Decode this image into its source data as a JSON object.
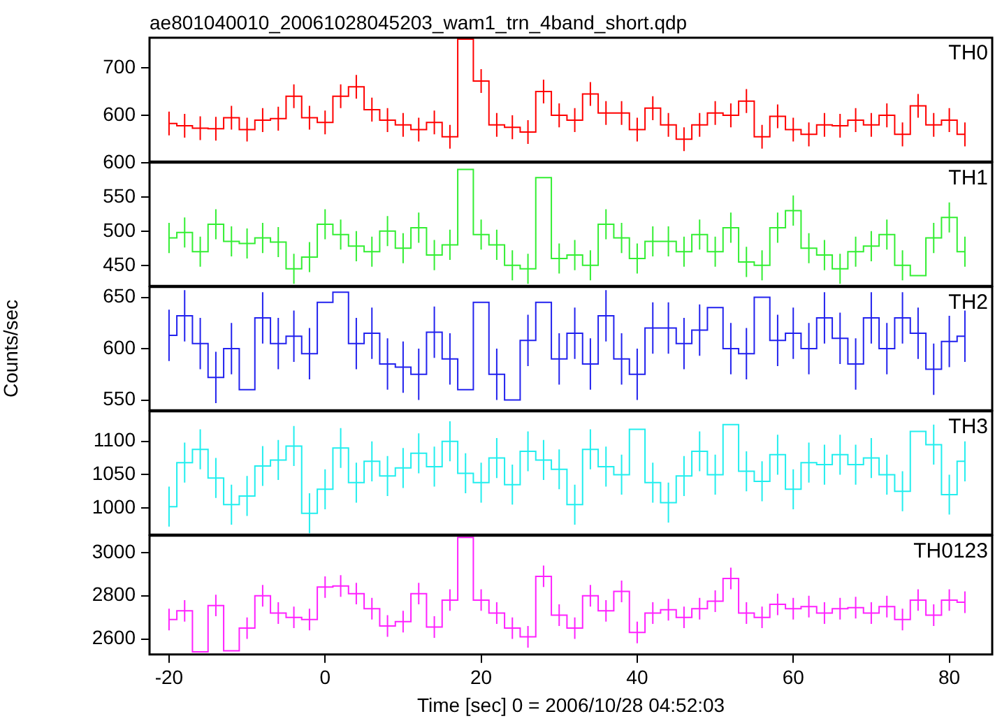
{
  "chart_data": [
    {
      "type": "step",
      "title": "ae801040010_20061028045203_wam1_trn_4band_short.qdp",
      "tick_labels": "y",
      "xlim": [
        -22.5,
        85.5
      ],
      "xticks": [
        -20,
        0,
        20,
        40,
        60,
        80
      ],
      "ylim": [
        503,
        763
      ],
      "yticks": [
        600,
        700
      ],
      "x": [
        -20,
        -18,
        -16,
        -14,
        -12,
        -10,
        -8,
        -6,
        -4,
        -2,
        0,
        2,
        4,
        6,
        8,
        10,
        12,
        14,
        16,
        18,
        20,
        22,
        24,
        26,
        28,
        30,
        32,
        34,
        36,
        38,
        40,
        42,
        44,
        46,
        48,
        50,
        52,
        54,
        56,
        58,
        60,
        62,
        64,
        66,
        68,
        70,
        72,
        74,
        76,
        78,
        80,
        82
      ],
      "series": [
        {
          "name": "TH0",
          "color": "#ff0000",
          "values": [
            583,
            578,
            573,
            572,
            595,
            570,
            590,
            593,
            640,
            595,
            585,
            640,
            660,
            612,
            590,
            580,
            570,
            585,
            555,
            760,
            672,
            580,
            575,
            565,
            650,
            600,
            590,
            645,
            605,
            605,
            570,
            615,
            580,
            550,
            580,
            605,
            600,
            630,
            555,
            598,
            570,
            560,
            580,
            578,
            590,
            580,
            600,
            560,
            620,
            580,
            590,
            560
          ],
          "errors": [
            25,
            25,
            25,
            25,
            25,
            25,
            25,
            25,
            25,
            25,
            25,
            25,
            25,
            25,
            25,
            25,
            25,
            25,
            25,
            null,
            25,
            25,
            25,
            25,
            25,
            25,
            25,
            25,
            25,
            25,
            25,
            25,
            25,
            25,
            25,
            25,
            25,
            25,
            25,
            25,
            25,
            25,
            25,
            25,
            25,
            25,
            25,
            25,
            25,
            25,
            25,
            25
          ]
        }
      ]
    },
    {
      "type": "step",
      "tick_labels": "y",
      "xlim": [
        -22.5,
        85.5
      ],
      "xticks": [
        -20,
        0,
        20,
        40,
        60,
        80
      ],
      "ylim": [
        420,
        600
      ],
      "yticks": [
        450,
        500,
        550,
        600
      ],
      "x": [
        -20,
        -18,
        -16,
        -14,
        -12,
        -10,
        -8,
        -6,
        -4,
        -2,
        0,
        2,
        4,
        6,
        8,
        10,
        12,
        14,
        16,
        18,
        20,
        22,
        24,
        26,
        28,
        30,
        32,
        34,
        36,
        38,
        40,
        42,
        44,
        46,
        48,
        50,
        52,
        54,
        56,
        58,
        60,
        62,
        64,
        66,
        68,
        70,
        72,
        74,
        76,
        78,
        80,
        82
      ],
      "series": [
        {
          "name": "TH1",
          "color": "#33ee33",
          "values": [
            490,
            498,
            470,
            510,
            485,
            482,
            490,
            484,
            445,
            462,
            510,
            495,
            478,
            470,
            500,
            475,
            505,
            465,
            480,
            590,
            495,
            480,
            450,
            445,
            578,
            460,
            465,
            450,
            510,
            490,
            460,
            485,
            485,
            470,
            495,
            470,
            505,
            455,
            450,
            505,
            530,
            475,
            465,
            445,
            470,
            478,
            495,
            450,
            435,
            490,
            520,
            470
          ],
          "errors": [
            22,
            22,
            22,
            22,
            22,
            22,
            22,
            22,
            22,
            22,
            22,
            22,
            22,
            22,
            22,
            22,
            22,
            22,
            22,
            null,
            22,
            22,
            22,
            22,
            null,
            22,
            22,
            22,
            22,
            22,
            22,
            22,
            22,
            22,
            22,
            22,
            22,
            22,
            22,
            22,
            22,
            22,
            22,
            22,
            22,
            22,
            22,
            22,
            null,
            22,
            22,
            22
          ]
        }
      ]
    },
    {
      "type": "step",
      "tick_labels": "y",
      "ylabel": "Counts/sec",
      "xlim": [
        -22.5,
        85.5
      ],
      "xticks": [
        -20,
        0,
        20,
        40,
        60,
        80
      ],
      "ylim": [
        540,
        660
      ],
      "yticks": [
        550,
        600,
        650
      ],
      "x": [
        -20,
        -18,
        -16,
        -14,
        -12,
        -10,
        -8,
        -6,
        -4,
        -2,
        0,
        2,
        4,
        6,
        8,
        10,
        12,
        14,
        16,
        18,
        20,
        22,
        24,
        26,
        28,
        30,
        32,
        34,
        36,
        38,
        40,
        42,
        44,
        46,
        48,
        50,
        52,
        54,
        56,
        58,
        60,
        62,
        64,
        66,
        68,
        70,
        72,
        74,
        76,
        78,
        80,
        82
      ],
      "series": [
        {
          "name": "TH2",
          "color": "#2222ee",
          "values": [
            613,
            632,
            605,
            572,
            600,
            560,
            630,
            605,
            612,
            595,
            645,
            655,
            605,
            615,
            585,
            582,
            575,
            616,
            590,
            560,
            645,
            575,
            550,
            608,
            645,
            590,
            615,
            585,
            632,
            590,
            575,
            620,
            620,
            605,
            618,
            640,
            600,
            595,
            650,
            608,
            615,
            600,
            630,
            610,
            585,
            630,
            600,
            630,
            615,
            580,
            607,
            612
          ],
          "errors": [
            25,
            25,
            25,
            25,
            25,
            null,
            25,
            25,
            25,
            25,
            null,
            null,
            25,
            25,
            25,
            25,
            25,
            25,
            25,
            null,
            null,
            25,
            null,
            25,
            null,
            25,
            25,
            25,
            25,
            25,
            25,
            25,
            25,
            25,
            25,
            null,
            25,
            25,
            null,
            25,
            25,
            25,
            25,
            25,
            25,
            25,
            25,
            25,
            25,
            25,
            25,
            25
          ]
        }
      ]
    },
    {
      "type": "step",
      "tick_labels": "y",
      "xlim": [
        -22.5,
        85.5
      ],
      "xticks": [
        -20,
        0,
        20,
        40,
        60,
        80
      ],
      "ylim": [
        960,
        1145
      ],
      "yticks": [
        1000,
        1050,
        1100
      ],
      "x": [
        -20,
        -18,
        -16,
        -14,
        -12,
        -10,
        -8,
        -6,
        -4,
        -2,
        0,
        2,
        4,
        6,
        8,
        10,
        12,
        14,
        16,
        18,
        20,
        22,
        24,
        26,
        28,
        30,
        32,
        34,
        36,
        38,
        40,
        42,
        44,
        46,
        48,
        50,
        52,
        54,
        56,
        58,
        60,
        62,
        64,
        66,
        68,
        70,
        72,
        74,
        76,
        78,
        80,
        82
      ],
      "series": [
        {
          "name": "TH3",
          "color": "#22eeee",
          "values": [
            1002,
            1068,
            1088,
            1045,
            1005,
            1018,
            1063,
            1072,
            1093,
            992,
            1028,
            1090,
            1038,
            1070,
            1048,
            1060,
            1082,
            1062,
            1100,
            1052,
            1038,
            1075,
            1035,
            1085,
            1072,
            1058,
            1005,
            1088,
            1062,
            1050,
            1118,
            1038,
            1008,
            1048,
            1085,
            1050,
            1125,
            1055,
            1040,
            1080,
            1028,
            1068,
            1065,
            1080,
            1065,
            1075,
            1050,
            1025,
            1115,
            1095,
            1020,
            1070
          ],
          "errors": [
            30,
            30,
            30,
            30,
            30,
            30,
            30,
            30,
            30,
            30,
            30,
            30,
            30,
            30,
            30,
            30,
            30,
            30,
            30,
            30,
            30,
            30,
            30,
            30,
            30,
            30,
            30,
            30,
            30,
            30,
            null,
            30,
            30,
            30,
            30,
            30,
            null,
            30,
            30,
            30,
            30,
            30,
            30,
            30,
            30,
            30,
            30,
            30,
            null,
            30,
            30,
            30
          ]
        }
      ]
    },
    {
      "type": "step",
      "xlabel": "Time [sec] 0 = 2006/10/28 04:52:03",
      "xlim": [
        -22.5,
        85.5
      ],
      "xticks": [
        -20,
        0,
        20,
        40,
        60,
        80
      ],
      "ylim": [
        2528,
        3078
      ],
      "yticks": [
        2600,
        2800,
        3000
      ],
      "x": [
        -20,
        -18,
        -16,
        -14,
        -12,
        -10,
        -8,
        -6,
        -4,
        -2,
        0,
        2,
        4,
        6,
        8,
        10,
        12,
        14,
        16,
        18,
        20,
        22,
        24,
        26,
        28,
        30,
        32,
        34,
        36,
        38,
        40,
        42,
        44,
        46,
        48,
        50,
        52,
        54,
        56,
        58,
        60,
        62,
        64,
        66,
        68,
        70,
        72,
        74,
        76,
        78,
        80,
        82
      ],
      "series": [
        {
          "name": "TH0123",
          "color": "#ff22ff",
          "values": [
            2690,
            2730,
            2540,
            2755,
            2545,
            2650,
            2800,
            2720,
            2700,
            2690,
            2840,
            2845,
            2810,
            2740,
            2660,
            2680,
            2810,
            2655,
            2780,
            3070,
            2780,
            2720,
            2650,
            2610,
            2890,
            2710,
            2650,
            2800,
            2730,
            2820,
            2630,
            2720,
            2735,
            2700,
            2740,
            2775,
            2880,
            2720,
            2700,
            2760,
            2740,
            2750,
            2720,
            2740,
            2745,
            2720,
            2750,
            2690,
            2780,
            2710,
            2780,
            2770
          ],
          "errors": [
            50,
            50,
            null,
            50,
            null,
            50,
            50,
            50,
            50,
            50,
            50,
            50,
            50,
            50,
            50,
            50,
            50,
            50,
            50,
            null,
            50,
            50,
            50,
            50,
            50,
            50,
            50,
            50,
            50,
            50,
            50,
            50,
            50,
            50,
            50,
            50,
            50,
            50,
            50,
            50,
            50,
            50,
            50,
            50,
            50,
            50,
            50,
            50,
            50,
            50,
            50,
            50
          ]
        }
      ]
    }
  ]
}
